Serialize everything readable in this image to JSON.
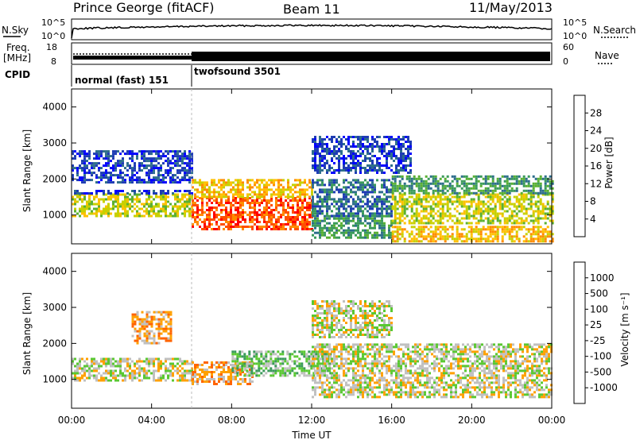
{
  "header": {
    "station": "Prince George (fitACF)",
    "beam": "Beam 11",
    "date": "11/May/2013"
  },
  "panels": {
    "nsky_label": "N.Sky",
    "nsearch_label": "N.Search",
    "freq_label_line1": "Freq.",
    "freq_label_line2": "[MHz]",
    "nave_label": "Nave",
    "cpid_label": "CPID",
    "nsky_ticks": [
      "10^5",
      "10^0"
    ],
    "nsearch_ticks": [
      "10^5",
      "10^0"
    ],
    "freq_ticks": [
      "18",
      "8"
    ],
    "nave_ticks": [
      "60",
      "0"
    ],
    "cpid_segments": [
      {
        "start": 0,
        "end": 6,
        "label": "normal (fast) 151"
      },
      {
        "start": 6,
        "end": 24,
        "label": "twofsound 3501"
      }
    ]
  },
  "colorbars": {
    "power": {
      "label": "Power [dB]",
      "ticks": [
        "28",
        "24",
        "20",
        "16",
        "12",
        "8",
        "4"
      ],
      "colors": [
        "#ff0000",
        "#ff5000",
        "#ff8c00",
        "#ffc000",
        "#c8d000",
        "#5ab032",
        "#3a9a5a",
        "#2e6e8c",
        "#1e3cb4",
        "#0000ff"
      ]
    },
    "velocity": {
      "label": "Velocity [m s⁻¹]",
      "ticks": [
        "1000",
        "500",
        "100",
        "25",
        "-25",
        "-100",
        "-500",
        "-1000"
      ],
      "colors": [
        "#1e3cb4",
        "#2e6ea0",
        "#3a9a5a",
        "#5ac832",
        "#c0c0c0",
        "#ffa000",
        "#ff6400",
        "#ff0000"
      ]
    }
  },
  "chart_data": [
    {
      "type": "heatmap",
      "name": "power",
      "ylabel": "Slant Range [km]",
      "yticks": [
        1000,
        2000,
        3000,
        4000
      ],
      "ylim": [
        200,
        4500
      ],
      "xlim": [
        0,
        24
      ],
      "bands": [
        {
          "t0": 0,
          "t1": 6,
          "r0": 1000,
          "r1": 1600,
          "level": 4
        },
        {
          "t0": 0,
          "t1": 6,
          "r0": 1600,
          "r1": 1700,
          "level": 8
        },
        {
          "t0": 0,
          "t1": 6,
          "r0": 1900,
          "r1": 2800,
          "level": 8
        },
        {
          "t0": 6,
          "t1": 12,
          "r0": 600,
          "r1": 1500,
          "level": 1
        },
        {
          "t0": 6,
          "t1": 12,
          "r0": 1500,
          "r1": 2000,
          "level": 3
        },
        {
          "t0": 12,
          "t1": 16,
          "r0": 400,
          "r1": 1000,
          "level": 6
        },
        {
          "t0": 12,
          "t1": 16,
          "r0": 1000,
          "r1": 2000,
          "level": 7
        },
        {
          "t0": 12,
          "t1": 17,
          "r0": 2200,
          "r1": 3200,
          "level": 8
        },
        {
          "t0": 16,
          "t1": 24,
          "r0": 800,
          "r1": 1600,
          "level": 4
        },
        {
          "t0": 16,
          "t1": 24,
          "r0": 1600,
          "r1": 2100,
          "level": 6
        },
        {
          "t0": 16,
          "t1": 24,
          "r0": 300,
          "r1": 700,
          "level": 3
        }
      ]
    },
    {
      "type": "heatmap",
      "name": "velocity",
      "ylabel": "Slant Range [km]",
      "yticks": [
        1000,
        2000,
        3000,
        4000
      ],
      "ylim": [
        200,
        4500
      ],
      "xlim": [
        0,
        24
      ],
      "bands": [
        {
          "t0": 0,
          "t1": 6,
          "r0": 1000,
          "r1": 1600,
          "level": 4
        },
        {
          "t0": 3,
          "t1": 5,
          "r0": 2000,
          "r1": 2900,
          "level": 5
        },
        {
          "t0": 6,
          "t1": 9,
          "r0": 900,
          "r1": 1500,
          "level": 5
        },
        {
          "t0": 8,
          "t1": 13,
          "r0": 1100,
          "r1": 1800,
          "level": 3
        },
        {
          "t0": 12,
          "t1": 24,
          "r0": 500,
          "r1": 2000,
          "level": 4
        },
        {
          "t0": 12,
          "t1": 16,
          "r0": 2200,
          "r1": 3200,
          "level": 4
        }
      ]
    }
  ],
  "xaxis": {
    "ticks": [
      "00:00",
      "04:00",
      "08:00",
      "12:00",
      "16:00",
      "20:00",
      "00:00"
    ],
    "label": "Time UT"
  }
}
